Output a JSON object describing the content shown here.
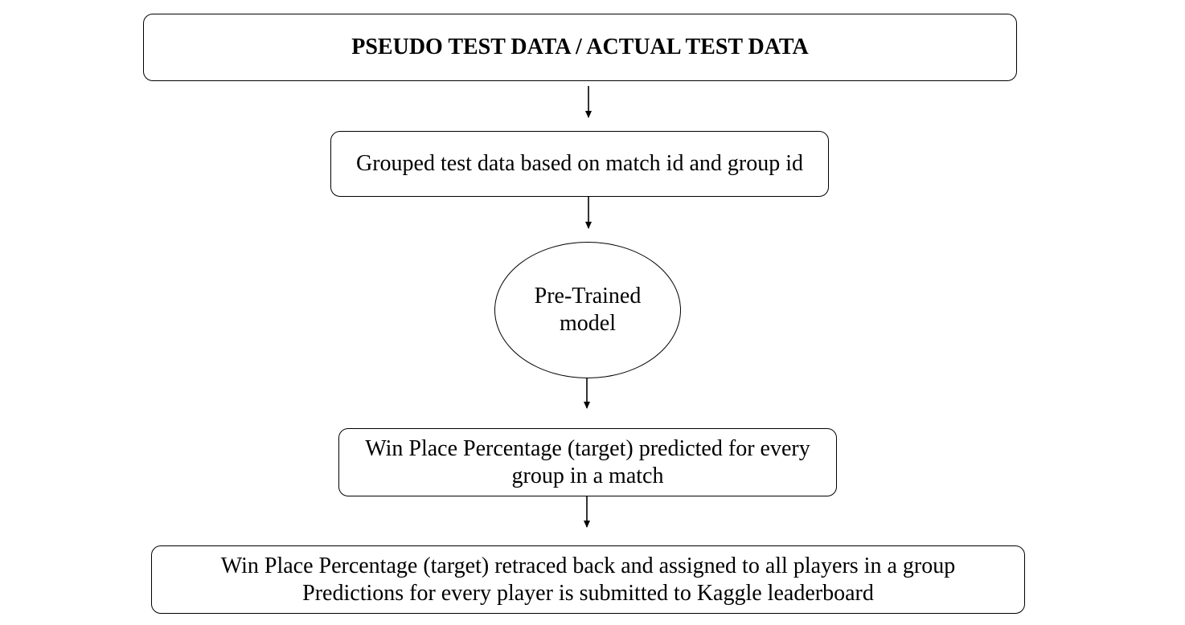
{
  "diagram": {
    "nodes": {
      "test_data": {
        "label": "PSEUDO TEST DATA / ACTUAL TEST DATA"
      },
      "grouped": {
        "label": "Grouped test data based on match id and group id"
      },
      "model": {
        "lines": [
          "Pre-Trained",
          "model"
        ]
      },
      "prediction": {
        "lines": [
          "Win Place Percentage (target) predicted for every",
          "group in a match"
        ]
      },
      "retrace": {
        "lines": [
          "Win Place Percentage (target) retraced back and assigned to all players in a group",
          "Predictions for every player is submitted to Kaggle leaderboard"
        ]
      }
    },
    "edges": [
      {
        "from": "test_data",
        "to": "grouped"
      },
      {
        "from": "grouped",
        "to": "model"
      },
      {
        "from": "model",
        "to": "prediction"
      },
      {
        "from": "prediction",
        "to": "retrace"
      }
    ]
  }
}
